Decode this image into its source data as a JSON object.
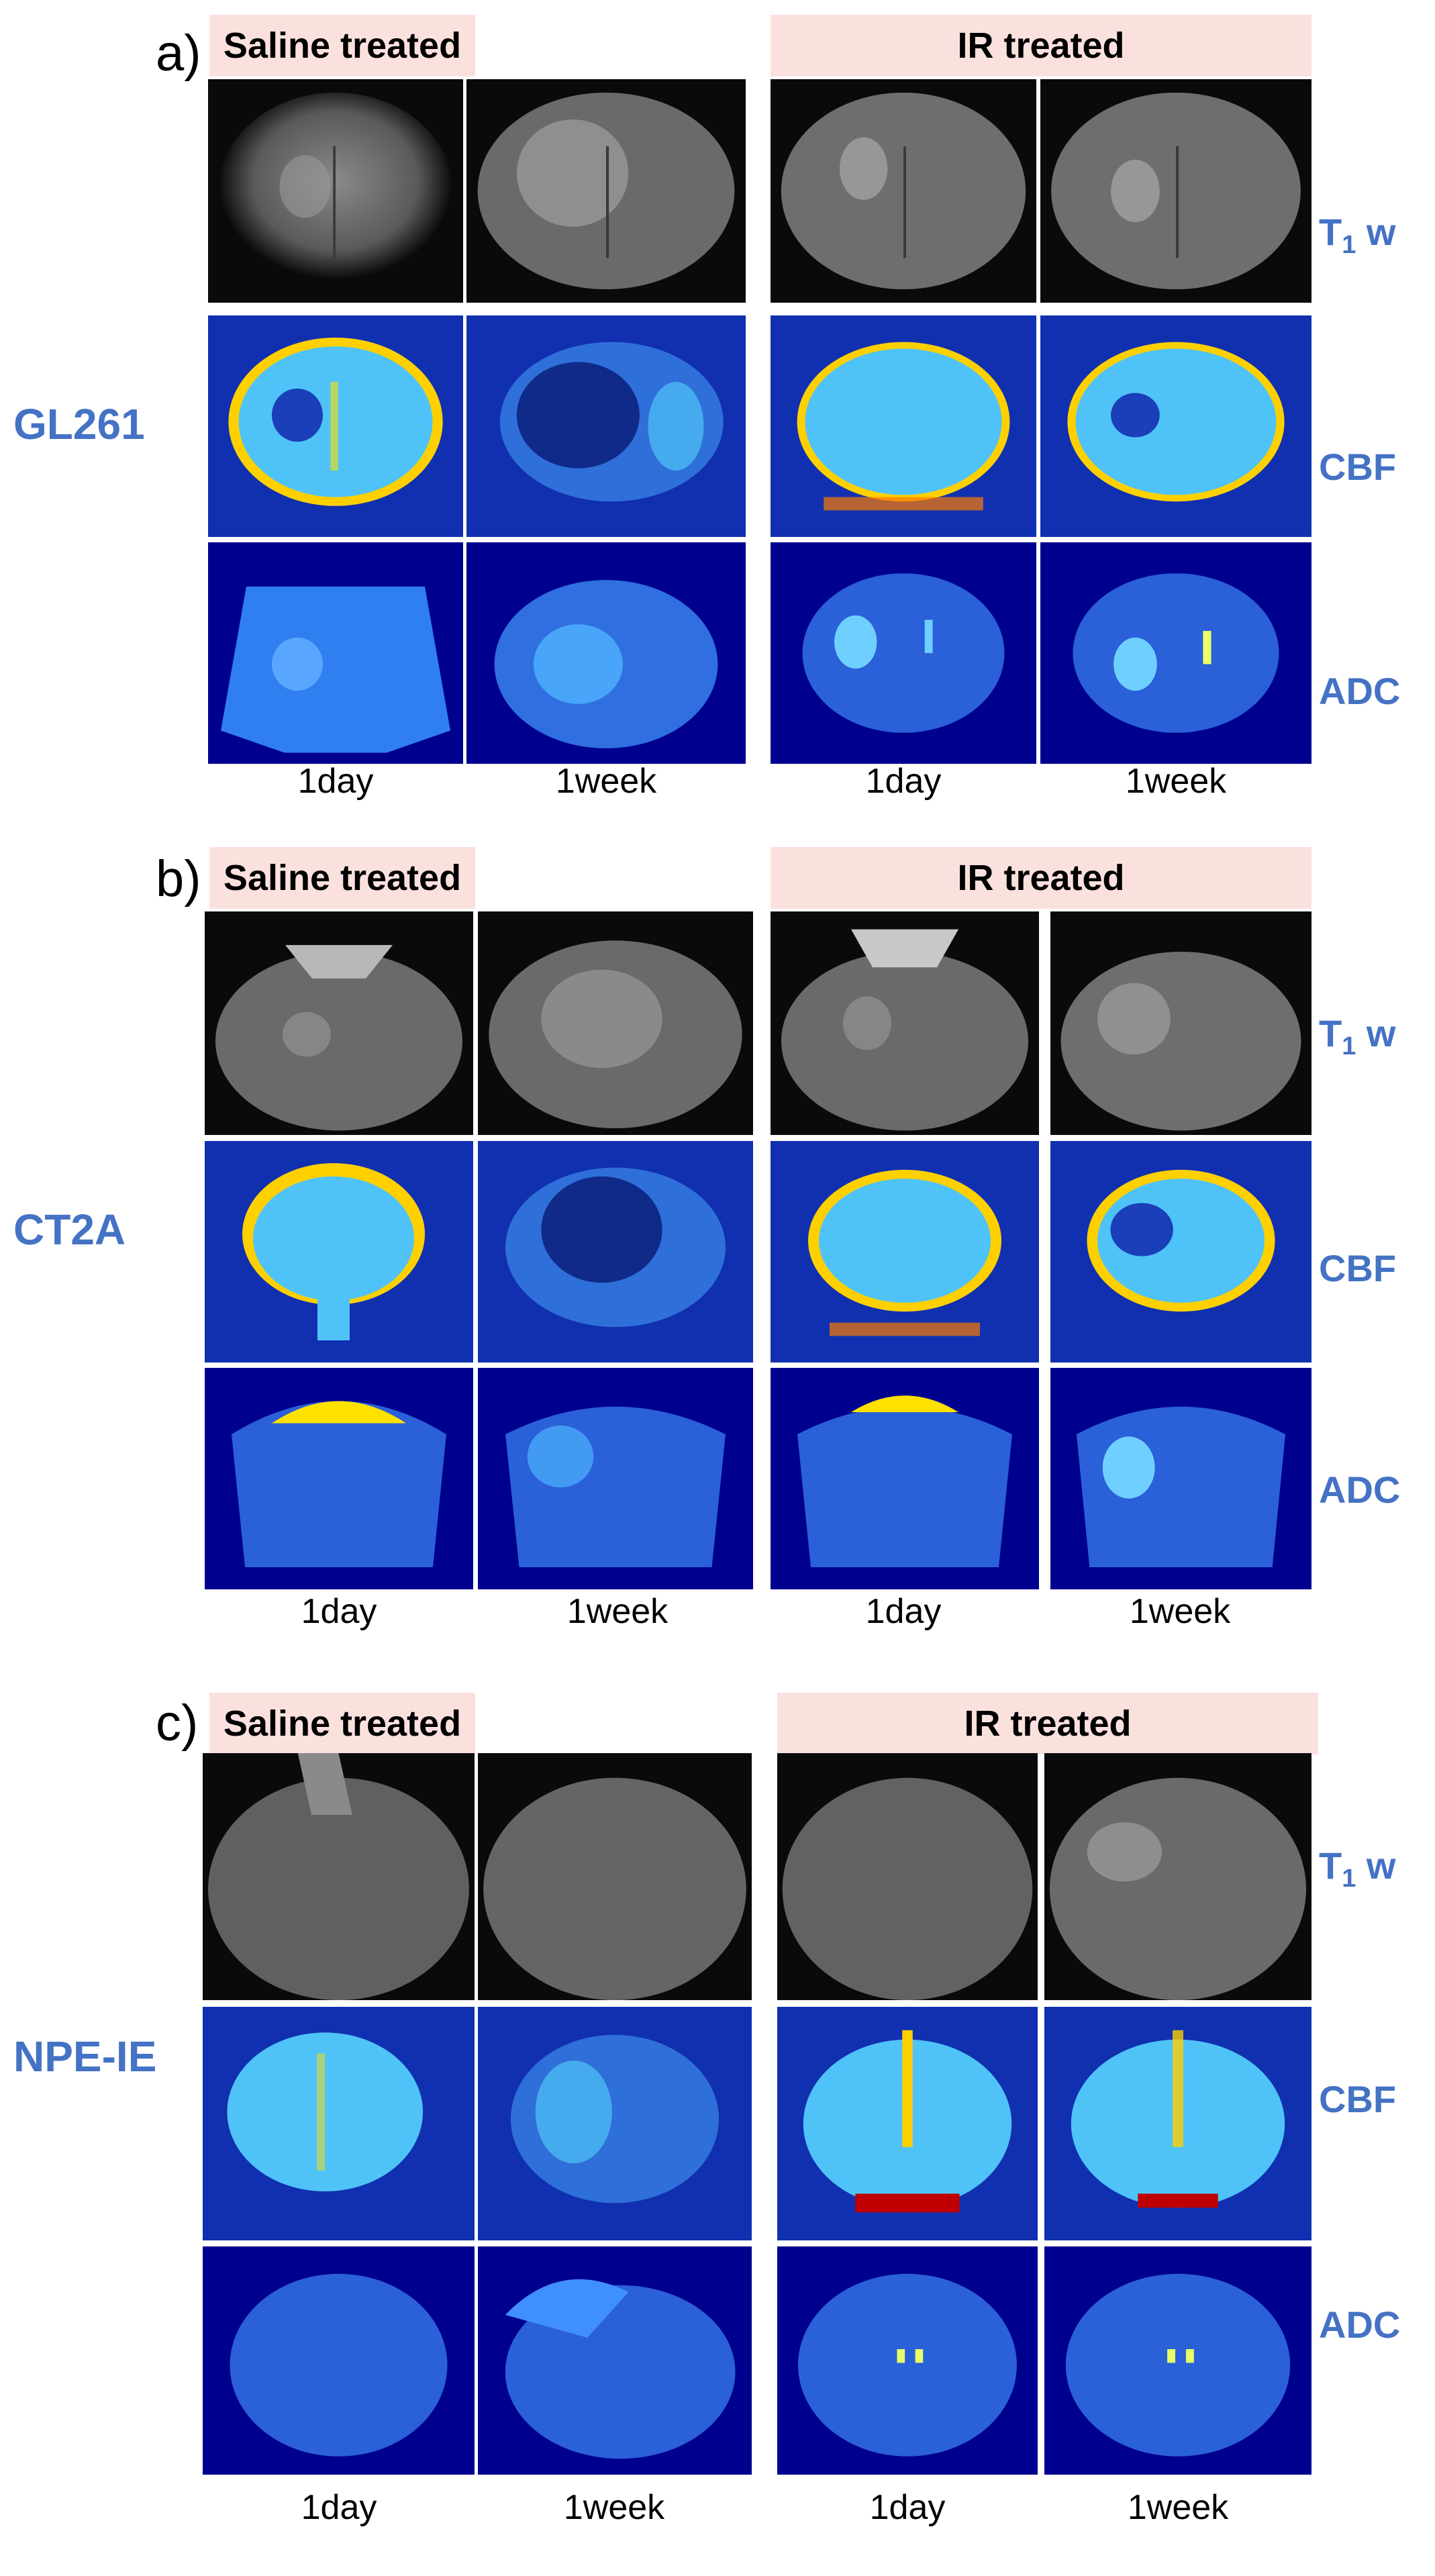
{
  "panels": [
    {
      "letter": "a)",
      "cell_line": "GL261",
      "groups": [
        {
          "header": "Saline treated",
          "timepoints": [
            "1day",
            "1week"
          ]
        },
        {
          "header": "IR treated",
          "timepoints": [
            "1day",
            "1week"
          ]
        }
      ],
      "rows": [
        {
          "prefix": "T",
          "sub": "1",
          "suffix": " w"
        },
        {
          "prefix": "CBF",
          "sub": "",
          "suffix": ""
        },
        {
          "prefix": "ADC",
          "sub": "",
          "suffix": ""
        }
      ]
    },
    {
      "letter": "b)",
      "cell_line": "CT2A",
      "groups": [
        {
          "header": "Saline treated",
          "timepoints": [
            "1day",
            "1week"
          ]
        },
        {
          "header": "IR treated",
          "timepoints": [
            "1day",
            "1week"
          ]
        }
      ],
      "rows": [
        {
          "prefix": "T",
          "sub": "1",
          "suffix": " w"
        },
        {
          "prefix": "CBF",
          "sub": "",
          "suffix": ""
        },
        {
          "prefix": "ADC",
          "sub": "",
          "suffix": ""
        }
      ]
    },
    {
      "letter": "c)",
      "cell_line": "NPE-IE",
      "groups": [
        {
          "header": "Saline treated",
          "timepoints": [
            "1day",
            "1week"
          ]
        },
        {
          "header": "IR treated",
          "timepoints": [
            "1day",
            "1week"
          ]
        }
      ],
      "rows": [
        {
          "prefix": "T",
          "sub": "1",
          "suffix": " w"
        },
        {
          "prefix": "CBF",
          "sub": "",
          "suffix": ""
        },
        {
          "prefix": "ADC",
          "sub": "",
          "suffix": ""
        }
      ]
    }
  ],
  "colors": {
    "header_bg": "#fbe1de",
    "label_blue": "#4472c4",
    "adc_bg": "#00008f",
    "t1_bg": "#0a0a0a"
  }
}
